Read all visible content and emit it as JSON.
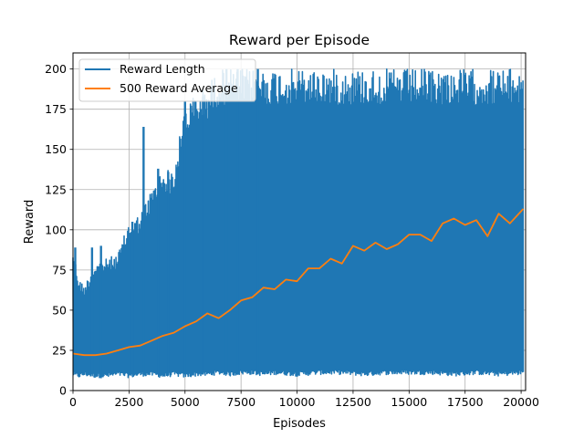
{
  "chart_data": {
    "type": "line",
    "title": "Reward per Episode",
    "xlabel": "Episodes",
    "ylabel": "Reward",
    "xlim": [
      0,
      20200
    ],
    "ylim": [
      0,
      210
    ],
    "grid": true,
    "legend_position": "top-left",
    "x_ticks": [
      0,
      2500,
      5000,
      7500,
      10000,
      12500,
      15000,
      17500,
      20000
    ],
    "y_ticks": [
      0,
      25,
      50,
      75,
      100,
      125,
      150,
      175,
      200
    ],
    "series": [
      {
        "name": "Reward Length",
        "color": "#1f77b4",
        "band": {
          "x": [
            0,
            250,
            500,
            1000,
            1500,
            2000,
            2500,
            3000,
            3500,
            4000,
            4500,
            5000,
            5500,
            6000,
            6500,
            7000,
            7500,
            8000,
            8500,
            9000,
            10000,
            11000,
            12000,
            13000,
            14000,
            15000,
            16000,
            17000,
            18000,
            19000,
            20100
          ],
          "low": [
            9,
            8,
            9,
            8,
            8,
            9,
            8,
            9,
            9,
            8,
            9,
            8,
            9,
            9,
            10,
            9,
            10,
            10,
            9,
            10,
            9,
            10,
            10,
            9,
            10,
            10,
            10,
            9,
            10,
            9,
            10
          ],
          "high": [
            89,
            70,
            65,
            80,
            82,
            85,
            105,
            110,
            125,
            138,
            137,
            178,
            185,
            190,
            200,
            200,
            200,
            200,
            200,
            200,
            200,
            200,
            200,
            200,
            200,
            200,
            200,
            200,
            200,
            200,
            200
          ]
        },
        "spikes": [
          {
            "x": 100,
            "y": 89
          },
          {
            "x": 850,
            "y": 89
          },
          {
            "x": 1250,
            "y": 90
          },
          {
            "x": 2650,
            "y": 105
          },
          {
            "x": 3150,
            "y": 164
          },
          {
            "x": 3800,
            "y": 138
          },
          {
            "x": 4250,
            "y": 136
          },
          {
            "x": 5000,
            "y": 180
          },
          {
            "x": 5800,
            "y": 183
          },
          {
            "x": 6850,
            "y": 200
          },
          {
            "x": 7350,
            "y": 200
          },
          {
            "x": 8250,
            "y": 200
          }
        ]
      },
      {
        "name": "500 Reward Average",
        "color": "#ff7f0e",
        "x": [
          0,
          500,
          1000,
          1500,
          2000,
          2500,
          3000,
          3500,
          4000,
          4500,
          5000,
          5500,
          6000,
          6500,
          7000,
          7500,
          8000,
          8500,
          9000,
          9500,
          10000,
          10500,
          11000,
          11500,
          12000,
          12500,
          13000,
          13500,
          14000,
          14500,
          15000,
          15500,
          16000,
          16500,
          17000,
          17500,
          18000,
          18500,
          19000,
          19500,
          20100
        ],
        "y": [
          23,
          22,
          22,
          23,
          25,
          27,
          28,
          31,
          34,
          36,
          40,
          43,
          48,
          45,
          50,
          56,
          58,
          64,
          63,
          69,
          68,
          76,
          76,
          82,
          79,
          90,
          87,
          92,
          88,
          91,
          97,
          97,
          93,
          104,
          107,
          103,
          106,
          96,
          110,
          104,
          113
        ]
      }
    ]
  }
}
